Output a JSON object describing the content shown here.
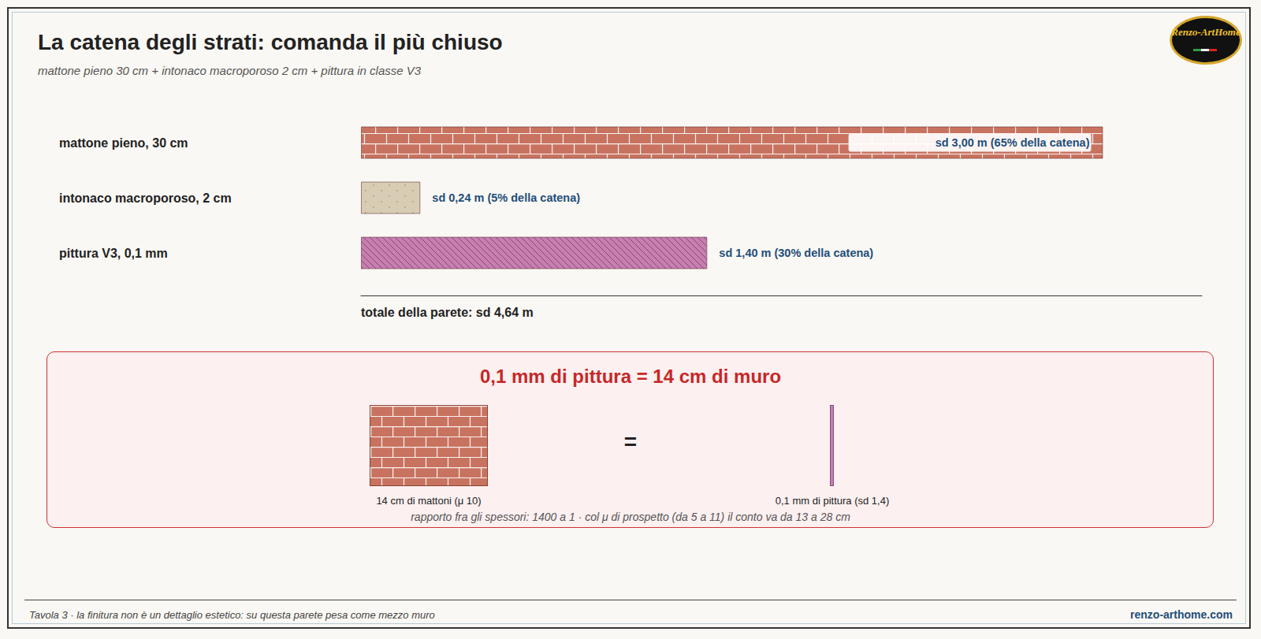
{
  "chart_data": {
    "type": "bar",
    "title": "La catena degli strati: comanda il più chiuso",
    "subtitle": "mattone pieno 30 cm + intonaco macroporoso 2 cm + pittura in classe V3",
    "orientation": "horizontal",
    "categories": [
      "mattone pieno, 30 cm",
      "intonaco macroporoso, 2 cm",
      "pittura V3, 0,1 mm"
    ],
    "values": [
      3.0,
      0.24,
      1.4
    ],
    "value_labels": [
      "sd 3,00 m (65% della catena)",
      "sd 0,24 m (5% della catena)",
      "sd 1,40 m (30% della catena)"
    ],
    "colors": [
      "#c87360",
      "#d9ccb4",
      "#c77fb0"
    ],
    "xlim": [
      0,
      3.4
    ],
    "xticks": [],
    "data_labels": true,
    "tick_labels": "y",
    "grid": false,
    "total": "totale della parete: sd 4,64 m"
  },
  "panel": {
    "title": "0,1 mm di pittura = 14 cm di muro",
    "equals": "=",
    "left_caption": "14 cm di mattoni (μ 10)",
    "right_caption": "0,1 mm di pittura (sd 1,4)",
    "note": "rapporto fra gli spessori: 1400 a 1 · col μ di prospetto (da 5 a 11) il conto va da 13 a 28 cm"
  },
  "footer": {
    "left": "Tavola 3 · la finitura non è un dettaglio estetico: su questa parete pesa come mezzo muro",
    "right": "renzo-arthome.com"
  },
  "logo": "Renzo-ArtHome"
}
